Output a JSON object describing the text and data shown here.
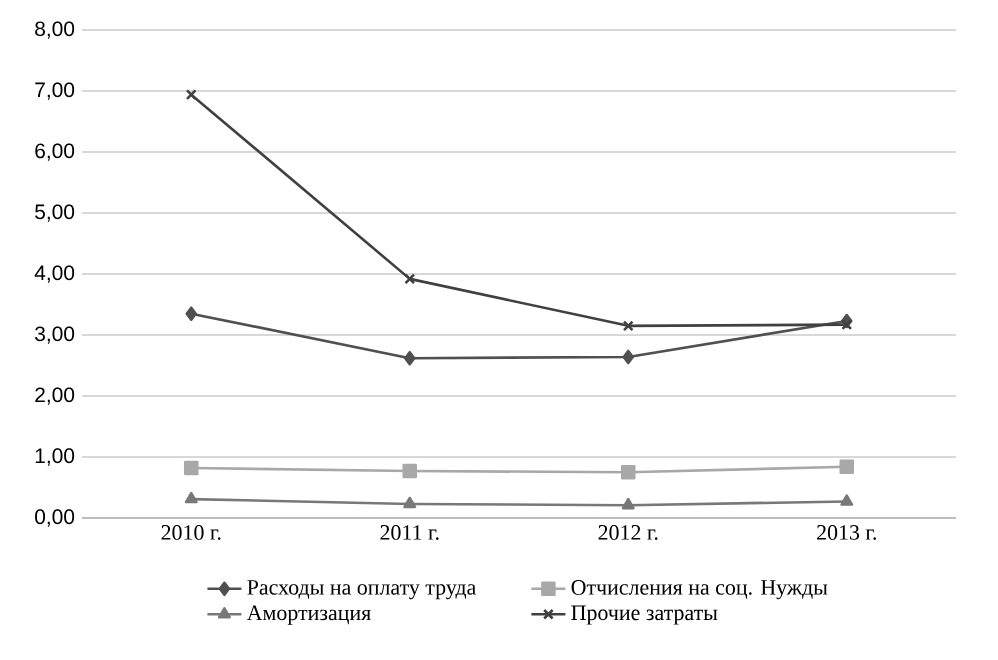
{
  "chart_data": {
    "type": "line",
    "categories": [
      "2010 г.",
      "2011 г.",
      "2012 г.",
      "2013 г."
    ],
    "series": [
      {
        "name": "Расходы на оплату труда",
        "color": "#505050",
        "marker": "diamond",
        "values": [
          3.35,
          2.62,
          2.64,
          3.23
        ]
      },
      {
        "name": "Отчисления на соц. Нужды",
        "color": "#a8a8a8",
        "marker": "square",
        "values": [
          0.82,
          0.77,
          0.75,
          0.84
        ]
      },
      {
        "name": "Амортизация",
        "color": "#787878",
        "marker": "triangle",
        "values": [
          0.31,
          0.23,
          0.21,
          0.27
        ]
      },
      {
        "name": "Прочие затраты",
        "color": "#404040",
        "marker": "cross",
        "values": [
          6.94,
          3.92,
          3.15,
          3.17
        ]
      }
    ],
    "ylim": [
      0,
      8
    ],
    "yticks": [
      {
        "value": 0,
        "label": "0,00"
      },
      {
        "value": 1,
        "label": "1,00"
      },
      {
        "value": 2,
        "label": "2,00"
      },
      {
        "value": 3,
        "label": "3,00"
      },
      {
        "value": 4,
        "label": "4,00"
      },
      {
        "value": 5,
        "label": "5,00"
      },
      {
        "value": 6,
        "label": "6,00"
      },
      {
        "value": 7,
        "label": "7,00"
      },
      {
        "value": 8,
        "label": "8,00"
      }
    ],
    "grid": "y",
    "legend": "bottom",
    "line_style": "solid"
  }
}
